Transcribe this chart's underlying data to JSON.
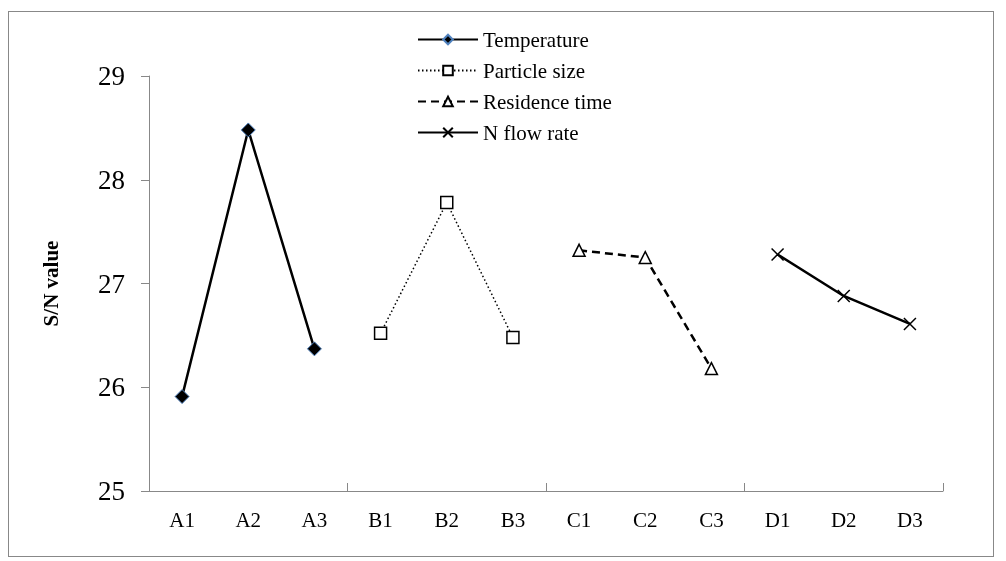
{
  "chart_data": {
    "type": "line",
    "ylabel": "S/N value",
    "categories": [
      "A1",
      "A2",
      "A3",
      "B1",
      "B2",
      "B3",
      "C1",
      "C2",
      "C3",
      "D1",
      "D2",
      "D3"
    ],
    "series": [
      {
        "name": "Temperature",
        "color": "#000000",
        "marker": "diamond",
        "line_style": "solid",
        "values": [
          25.91,
          28.48,
          26.37,
          null,
          null,
          null,
          null,
          null,
          null,
          null,
          null,
          null
        ]
      },
      {
        "name": "Particle size",
        "color": "#000000",
        "marker": "square",
        "line_style": "dotted",
        "values": [
          null,
          null,
          null,
          26.52,
          27.78,
          26.48,
          null,
          null,
          null,
          null,
          null,
          null
        ]
      },
      {
        "name": "Residence time",
        "color": "#000000",
        "marker": "triangle",
        "line_style": "dashed",
        "values": [
          null,
          null,
          null,
          null,
          null,
          null,
          27.32,
          27.25,
          26.18,
          null,
          null,
          null
        ]
      },
      {
        "name": "N flow rate",
        "color": "#000000",
        "marker": "cross",
        "line_style": "solid",
        "values": [
          null,
          null,
          null,
          null,
          null,
          null,
          null,
          null,
          null,
          27.28,
          26.88,
          26.61
        ]
      }
    ],
    "ylim": [
      25,
      29
    ],
    "yticks": [
      25,
      26,
      27,
      28,
      29
    ],
    "grid": false,
    "legend": "top"
  }
}
